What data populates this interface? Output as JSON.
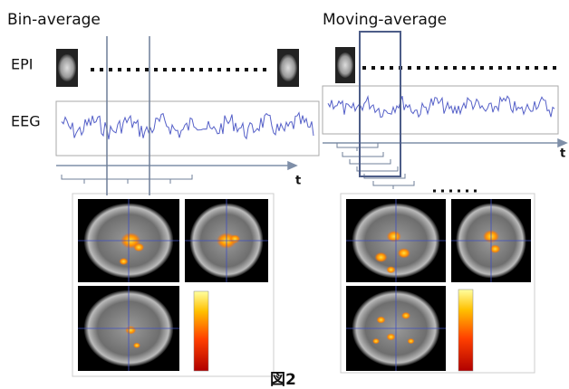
{
  "left": {
    "title": "Bin-average",
    "epi_label": "EPI",
    "eeg_label": "EEG",
    "axis_label": "t"
  },
  "right": {
    "title": "Moving-average",
    "axis_label": "t"
  },
  "figure_label": "図2"
}
